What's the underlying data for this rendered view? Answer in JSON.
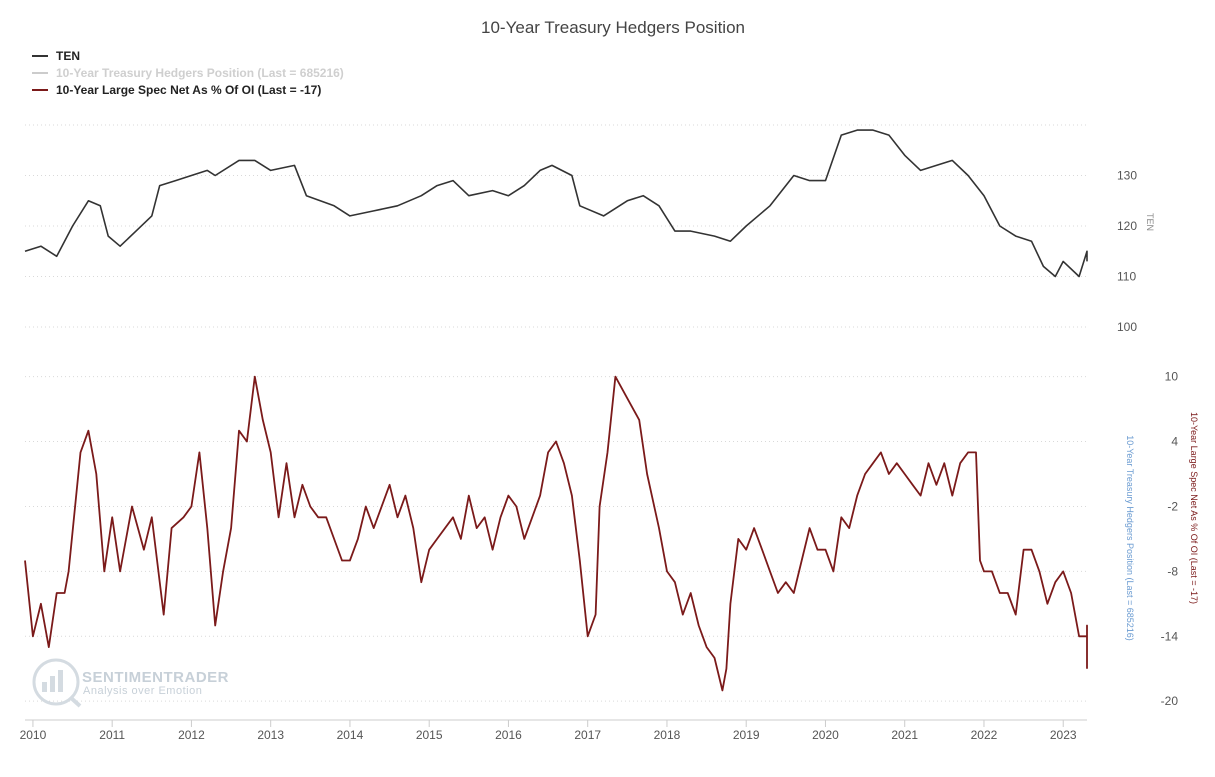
{
  "chart_data": {
    "type": "line",
    "title": "10-Year Treasury Hedgers Position",
    "legend": [
      {
        "name": "TEN",
        "color": "#333333"
      },
      {
        "name": "10-Year Treasury Hedgers Position (Last = 685216)",
        "color": "#cccccc"
      },
      {
        "name": "10-Year Large Spec Net As % Of OI (Last = -17)",
        "color": "#7b1a1a"
      }
    ],
    "legend_position": "top-left",
    "grid": true,
    "x_range": [
      2009.9,
      2023.3
    ],
    "x_ticks": [
      "2010",
      "2011",
      "2012",
      "2013",
      "2014",
      "2015",
      "2016",
      "2017",
      "2018",
      "2019",
      "2020",
      "2021",
      "2022",
      "2023"
    ],
    "panels": [
      {
        "name": "upper",
        "y_axis_label": "TEN",
        "ylim": [
          100,
          140
        ],
        "y_ticks": [
          "100",
          "110",
          "120",
          "130"
        ],
        "series": [
          {
            "name": "TEN",
            "color": "#333333",
            "points": [
              [
                2009.9,
                115
              ],
              [
                2010.1,
                116
              ],
              [
                2010.3,
                114
              ],
              [
                2010.5,
                120
              ],
              [
                2010.7,
                125
              ],
              [
                2010.85,
                124
              ],
              [
                2010.95,
                118
              ],
              [
                2011.1,
                116
              ],
              [
                2011.3,
                119
              ],
              [
                2011.5,
                122
              ],
              [
                2011.6,
                128
              ],
              [
                2011.8,
                129
              ],
              [
                2012.0,
                130
              ],
              [
                2012.2,
                131
              ],
              [
                2012.3,
                130
              ],
              [
                2012.6,
                133
              ],
              [
                2012.8,
                133
              ],
              [
                2013.0,
                131
              ],
              [
                2013.3,
                132
              ],
              [
                2013.45,
                126
              ],
              [
                2013.8,
                124
              ],
              [
                2014.0,
                122
              ],
              [
                2014.3,
                123
              ],
              [
                2014.6,
                124
              ],
              [
                2014.9,
                126
              ],
              [
                2015.1,
                128
              ],
              [
                2015.3,
                129
              ],
              [
                2015.5,
                126
              ],
              [
                2015.8,
                127
              ],
              [
                2016.0,
                126
              ],
              [
                2016.2,
                128
              ],
              [
                2016.4,
                131
              ],
              [
                2016.55,
                132
              ],
              [
                2016.8,
                130
              ],
              [
                2016.9,
                124
              ],
              [
                2017.2,
                122
              ],
              [
                2017.5,
                125
              ],
              [
                2017.7,
                126
              ],
              [
                2017.9,
                124
              ],
              [
                2018.1,
                119
              ],
              [
                2018.3,
                119
              ],
              [
                2018.6,
                118
              ],
              [
                2018.8,
                117
              ],
              [
                2019.0,
                120
              ],
              [
                2019.3,
                124
              ],
              [
                2019.6,
                130
              ],
              [
                2019.8,
                129
              ],
              [
                2020.0,
                129
              ],
              [
                2020.2,
                138
              ],
              [
                2020.4,
                139
              ],
              [
                2020.6,
                139
              ],
              [
                2020.8,
                138
              ],
              [
                2021.0,
                134
              ],
              [
                2021.2,
                131
              ],
              [
                2021.4,
                132
              ],
              [
                2021.6,
                133
              ],
              [
                2021.8,
                130
              ],
              [
                2022.0,
                126
              ],
              [
                2022.2,
                120
              ],
              [
                2022.4,
                118
              ],
              [
                2022.6,
                117
              ],
              [
                2022.75,
                112
              ],
              [
                2022.9,
                110
              ],
              [
                2023.0,
                113
              ],
              [
                2023.2,
                110
              ],
              [
                2023.4,
                115
              ],
              [
                2023.55,
                113
              ]
            ]
          }
        ]
      },
      {
        "name": "lower",
        "y_axis_label_primary": "10-Year Treasury Hedgers Position (Last = 685216)",
        "y_axis_label_secondary": "10-Year Large Spec Net As % Of OI (Last = -17)",
        "ylim": [
          -21,
          12
        ],
        "y_ticks": [
          "-20",
          "-14",
          "-8",
          "-2",
          "4",
          "10"
        ],
        "series": [
          {
            "name": "10-Year Large Spec Net As % Of OI",
            "color": "#7b1a1a",
            "points": [
              [
                2009.9,
                -7
              ],
              [
                2010.0,
                -14
              ],
              [
                2010.1,
                -11
              ],
              [
                2010.2,
                -15
              ],
              [
                2010.3,
                -10
              ],
              [
                2010.4,
                -10
              ],
              [
                2010.45,
                -8
              ],
              [
                2010.6,
                3
              ],
              [
                2010.7,
                5
              ],
              [
                2010.8,
                1
              ],
              [
                2010.9,
                -8
              ],
              [
                2011.0,
                -3
              ],
              [
                2011.1,
                -8
              ],
              [
                2011.25,
                -2
              ],
              [
                2011.4,
                -6
              ],
              [
                2011.5,
                -3
              ],
              [
                2011.65,
                -12
              ],
              [
                2011.75,
                -4
              ],
              [
                2011.9,
                -3
              ],
              [
                2012.0,
                -2
              ],
              [
                2012.1,
                3
              ],
              [
                2012.2,
                -4
              ],
              [
                2012.3,
                -13
              ],
              [
                2012.4,
                -8
              ],
              [
                2012.5,
                -4
              ],
              [
                2012.6,
                5
              ],
              [
                2012.7,
                4
              ],
              [
                2012.8,
                10
              ],
              [
                2012.9,
                6
              ],
              [
                2013.0,
                3
              ],
              [
                2013.1,
                -3
              ],
              [
                2013.2,
                2
              ],
              [
                2013.3,
                -3
              ],
              [
                2013.4,
                0
              ],
              [
                2013.5,
                -2
              ],
              [
                2013.6,
                -3
              ],
              [
                2013.7,
                -3
              ],
              [
                2013.9,
                -7
              ],
              [
                2014.0,
                -7
              ],
              [
                2014.1,
                -5
              ],
              [
                2014.2,
                -2
              ],
              [
                2014.3,
                -4
              ],
              [
                2014.5,
                0
              ],
              [
                2014.6,
                -3
              ],
              [
                2014.7,
                -1
              ],
              [
                2014.8,
                -4
              ],
              [
                2014.9,
                -9
              ],
              [
                2015.0,
                -6
              ],
              [
                2015.1,
                -5
              ],
              [
                2015.3,
                -3
              ],
              [
                2015.4,
                -5
              ],
              [
                2015.5,
                -1
              ],
              [
                2015.6,
                -4
              ],
              [
                2015.7,
                -3
              ],
              [
                2015.8,
                -6
              ],
              [
                2015.9,
                -3
              ],
              [
                2016.0,
                -1
              ],
              [
                2016.1,
                -2
              ],
              [
                2016.2,
                -5
              ],
              [
                2016.3,
                -3
              ],
              [
                2016.4,
                -1
              ],
              [
                2016.5,
                3
              ],
              [
                2016.6,
                4
              ],
              [
                2016.7,
                2
              ],
              [
                2016.8,
                -1
              ],
              [
                2016.9,
                -7
              ],
              [
                2017.0,
                -14
              ],
              [
                2017.1,
                -12
              ],
              [
                2017.15,
                -2
              ],
              [
                2017.25,
                3
              ],
              [
                2017.35,
                10
              ],
              [
                2017.5,
                8
              ],
              [
                2017.65,
                6
              ],
              [
                2017.75,
                1
              ],
              [
                2017.9,
                -4
              ],
              [
                2018.0,
                -8
              ],
              [
                2018.1,
                -9
              ],
              [
                2018.2,
                -12
              ],
              [
                2018.3,
                -10
              ],
              [
                2018.4,
                -13
              ],
              [
                2018.5,
                -15
              ],
              [
                2018.6,
                -16
              ],
              [
                2018.7,
                -19
              ],
              [
                2018.75,
                -17
              ],
              [
                2018.8,
                -11
              ],
              [
                2018.9,
                -5
              ],
              [
                2019.0,
                -6
              ],
              [
                2019.1,
                -4
              ],
              [
                2019.2,
                -6
              ],
              [
                2019.3,
                -8
              ],
              [
                2019.4,
                -10
              ],
              [
                2019.5,
                -9
              ],
              [
                2019.6,
                -10
              ],
              [
                2019.7,
                -7
              ],
              [
                2019.8,
                -4
              ],
              [
                2019.9,
                -6
              ],
              [
                2020.0,
                -6
              ],
              [
                2020.1,
                -8
              ],
              [
                2020.2,
                -3
              ],
              [
                2020.3,
                -4
              ],
              [
                2020.4,
                -1
              ],
              [
                2020.5,
                1
              ],
              [
                2020.6,
                2
              ],
              [
                2020.7,
                3
              ],
              [
                2020.8,
                1
              ],
              [
                2020.9,
                2
              ],
              [
                2021.0,
                1
              ],
              [
                2021.1,
                0
              ],
              [
                2021.2,
                -1
              ],
              [
                2021.3,
                2
              ],
              [
                2021.4,
                0
              ],
              [
                2021.5,
                2
              ],
              [
                2021.6,
                -1
              ],
              [
                2021.7,
                2
              ],
              [
                2021.8,
                3
              ],
              [
                2021.9,
                3
              ],
              [
                2021.95,
                -7
              ],
              [
                2022.0,
                -8
              ],
              [
                2022.1,
                -8
              ],
              [
                2022.2,
                -10
              ],
              [
                2022.3,
                -10
              ],
              [
                2022.4,
                -12
              ],
              [
                2022.5,
                -6
              ],
              [
                2022.6,
                -6
              ],
              [
                2022.7,
                -8
              ],
              [
                2022.8,
                -11
              ],
              [
                2022.9,
                -9
              ],
              [
                2023.0,
                -8
              ],
              [
                2023.1,
                -10
              ],
              [
                2023.2,
                -14
              ],
              [
                2023.3,
                -14
              ],
              [
                2023.4,
                -15
              ],
              [
                2023.5,
                -13
              ],
              [
                2023.55,
                -17
              ]
            ]
          }
        ]
      }
    ]
  },
  "watermark": {
    "title": "SENTIMENTRADER",
    "subtitle": "Analysis over Emotion"
  }
}
